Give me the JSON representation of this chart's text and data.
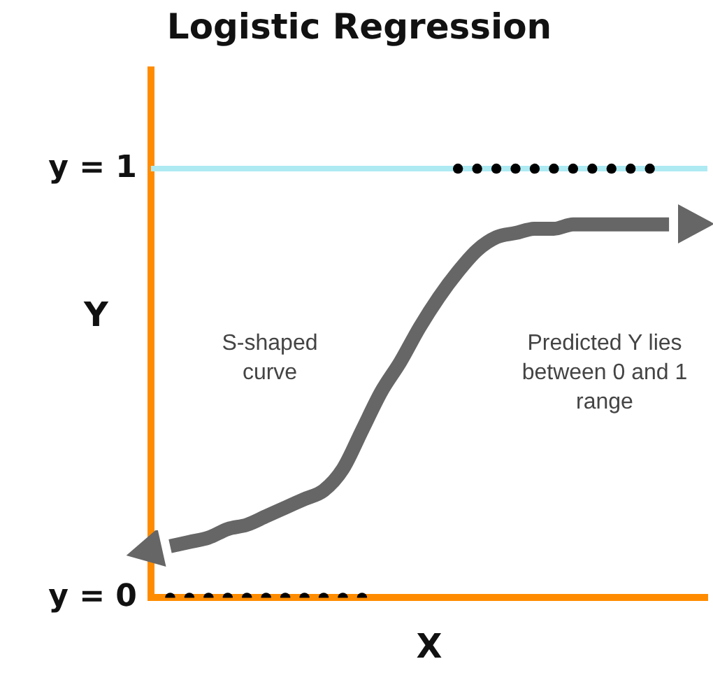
{
  "chart_data": {
    "type": "line",
    "title": "Logistic Regression",
    "xlabel": "X",
    "ylabel": "Y",
    "categories": [
      null,
      null,
      null,
      null,
      null,
      null,
      null,
      null,
      null,
      null,
      null,
      null,
      null,
      null,
      null,
      null,
      null,
      null,
      null,
      null,
      null,
      null,
      null,
      null,
      null,
      null,
      null,
      null,
      null,
      null
    ],
    "ylim": [
      0,
      1.23
    ],
    "yticks": [
      {
        "value": 0,
        "label": "y = 0"
      },
      {
        "value": 1,
        "label": "y = 1"
      }
    ],
    "tick_labels": "y",
    "grid": false,
    "legend": false,
    "ref_lines": [
      {
        "axis": "y",
        "value": 1,
        "color": "#aeeaf2"
      }
    ],
    "series": [
      {
        "type": "scatter",
        "color": "#000000",
        "marker": "circle",
        "values": [
          null,
          0,
          0,
          0,
          0,
          0,
          0,
          0,
          0,
          0,
          0,
          0,
          null,
          null,
          null,
          null,
          null,
          null,
          null,
          null,
          null,
          null,
          null,
          null,
          null,
          null,
          null,
          null,
          null,
          null
        ]
      },
      {
        "type": "scatter",
        "color": "#000000",
        "marker": "circle",
        "values": [
          null,
          null,
          null,
          null,
          null,
          null,
          null,
          null,
          null,
          null,
          null,
          null,
          null,
          null,
          null,
          null,
          1,
          1,
          1,
          1,
          1,
          1,
          1,
          1,
          1,
          1,
          1,
          null,
          null,
          null
        ]
      },
      {
        "color": "#666666",
        "marker": "none",
        "line_style": "solid",
        "values": [
          null,
          0.12,
          0.13,
          0.14,
          0.16,
          0.17,
          0.19,
          0.21,
          0.23,
          0.25,
          0.3,
          0.39,
          0.48,
          0.55,
          0.63,
          0.7,
          0.76,
          0.81,
          0.84,
          0.85,
          0.86,
          0.86,
          0.87,
          0.87,
          0.87,
          0.87,
          0.87,
          0.87,
          null,
          null
        ]
      }
    ],
    "annotations": [
      "S-shaped curve",
      "Predicted Y lies between 0 and 1 range"
    ]
  }
}
